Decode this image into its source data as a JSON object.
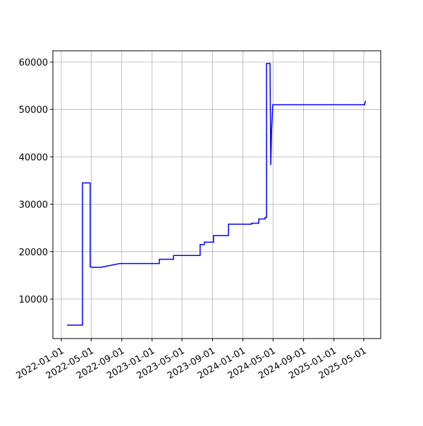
{
  "chart_data": {
    "type": "line",
    "x": [
      "2022-01-24",
      "2022-03-27",
      "2022-03-27",
      "2022-04-27",
      "2022-04-27",
      "2022-05-06",
      "2022-06-09",
      "2022-08-24",
      "2023-01-30",
      "2023-01-30",
      "2023-03-28",
      "2023-03-28",
      "2023-07-13",
      "2023-07-13",
      "2023-07-30",
      "2023-07-30",
      "2023-09-05",
      "2023-09-05",
      "2023-11-04",
      "2023-11-04",
      "2024-02-05",
      "2024-02-05",
      "2024-03-05",
      "2024-03-05",
      "2024-03-30",
      "2024-03-30",
      "2024-04-05",
      "2024-04-05",
      "2024-04-19",
      "2024-04-22",
      "2024-04-25",
      "2024-04-30",
      "2025-05-04",
      "2025-05-08"
    ],
    "series": [
      {
        "color": "#0000ff",
        "values": [
          4500,
          4500,
          34500,
          34500,
          16800,
          16700,
          16700,
          17500,
          17500,
          18400,
          18400,
          19200,
          19200,
          21500,
          21500,
          22000,
          22000,
          23400,
          23400,
          25800,
          25800,
          26000,
          26000,
          26900,
          26900,
          27200,
          27200,
          59700,
          59700,
          38300,
          45200,
          51000,
          51000,
          51800
        ]
      }
    ],
    "xlim": [
      "2021-11-28",
      "2025-07-08"
    ],
    "xticks": [
      "2022-01-01",
      "2022-05-01",
      "2022-09-01",
      "2023-01-01",
      "2023-05-01",
      "2023-09-01",
      "2024-01-01",
      "2024-05-01",
      "2024-09-01",
      "2025-01-01",
      "2025-05-01"
    ],
    "ylim": [
      1670,
      62380
    ],
    "yticks": [
      10000,
      20000,
      30000,
      40000,
      50000,
      60000
    ],
    "grid": true
  }
}
